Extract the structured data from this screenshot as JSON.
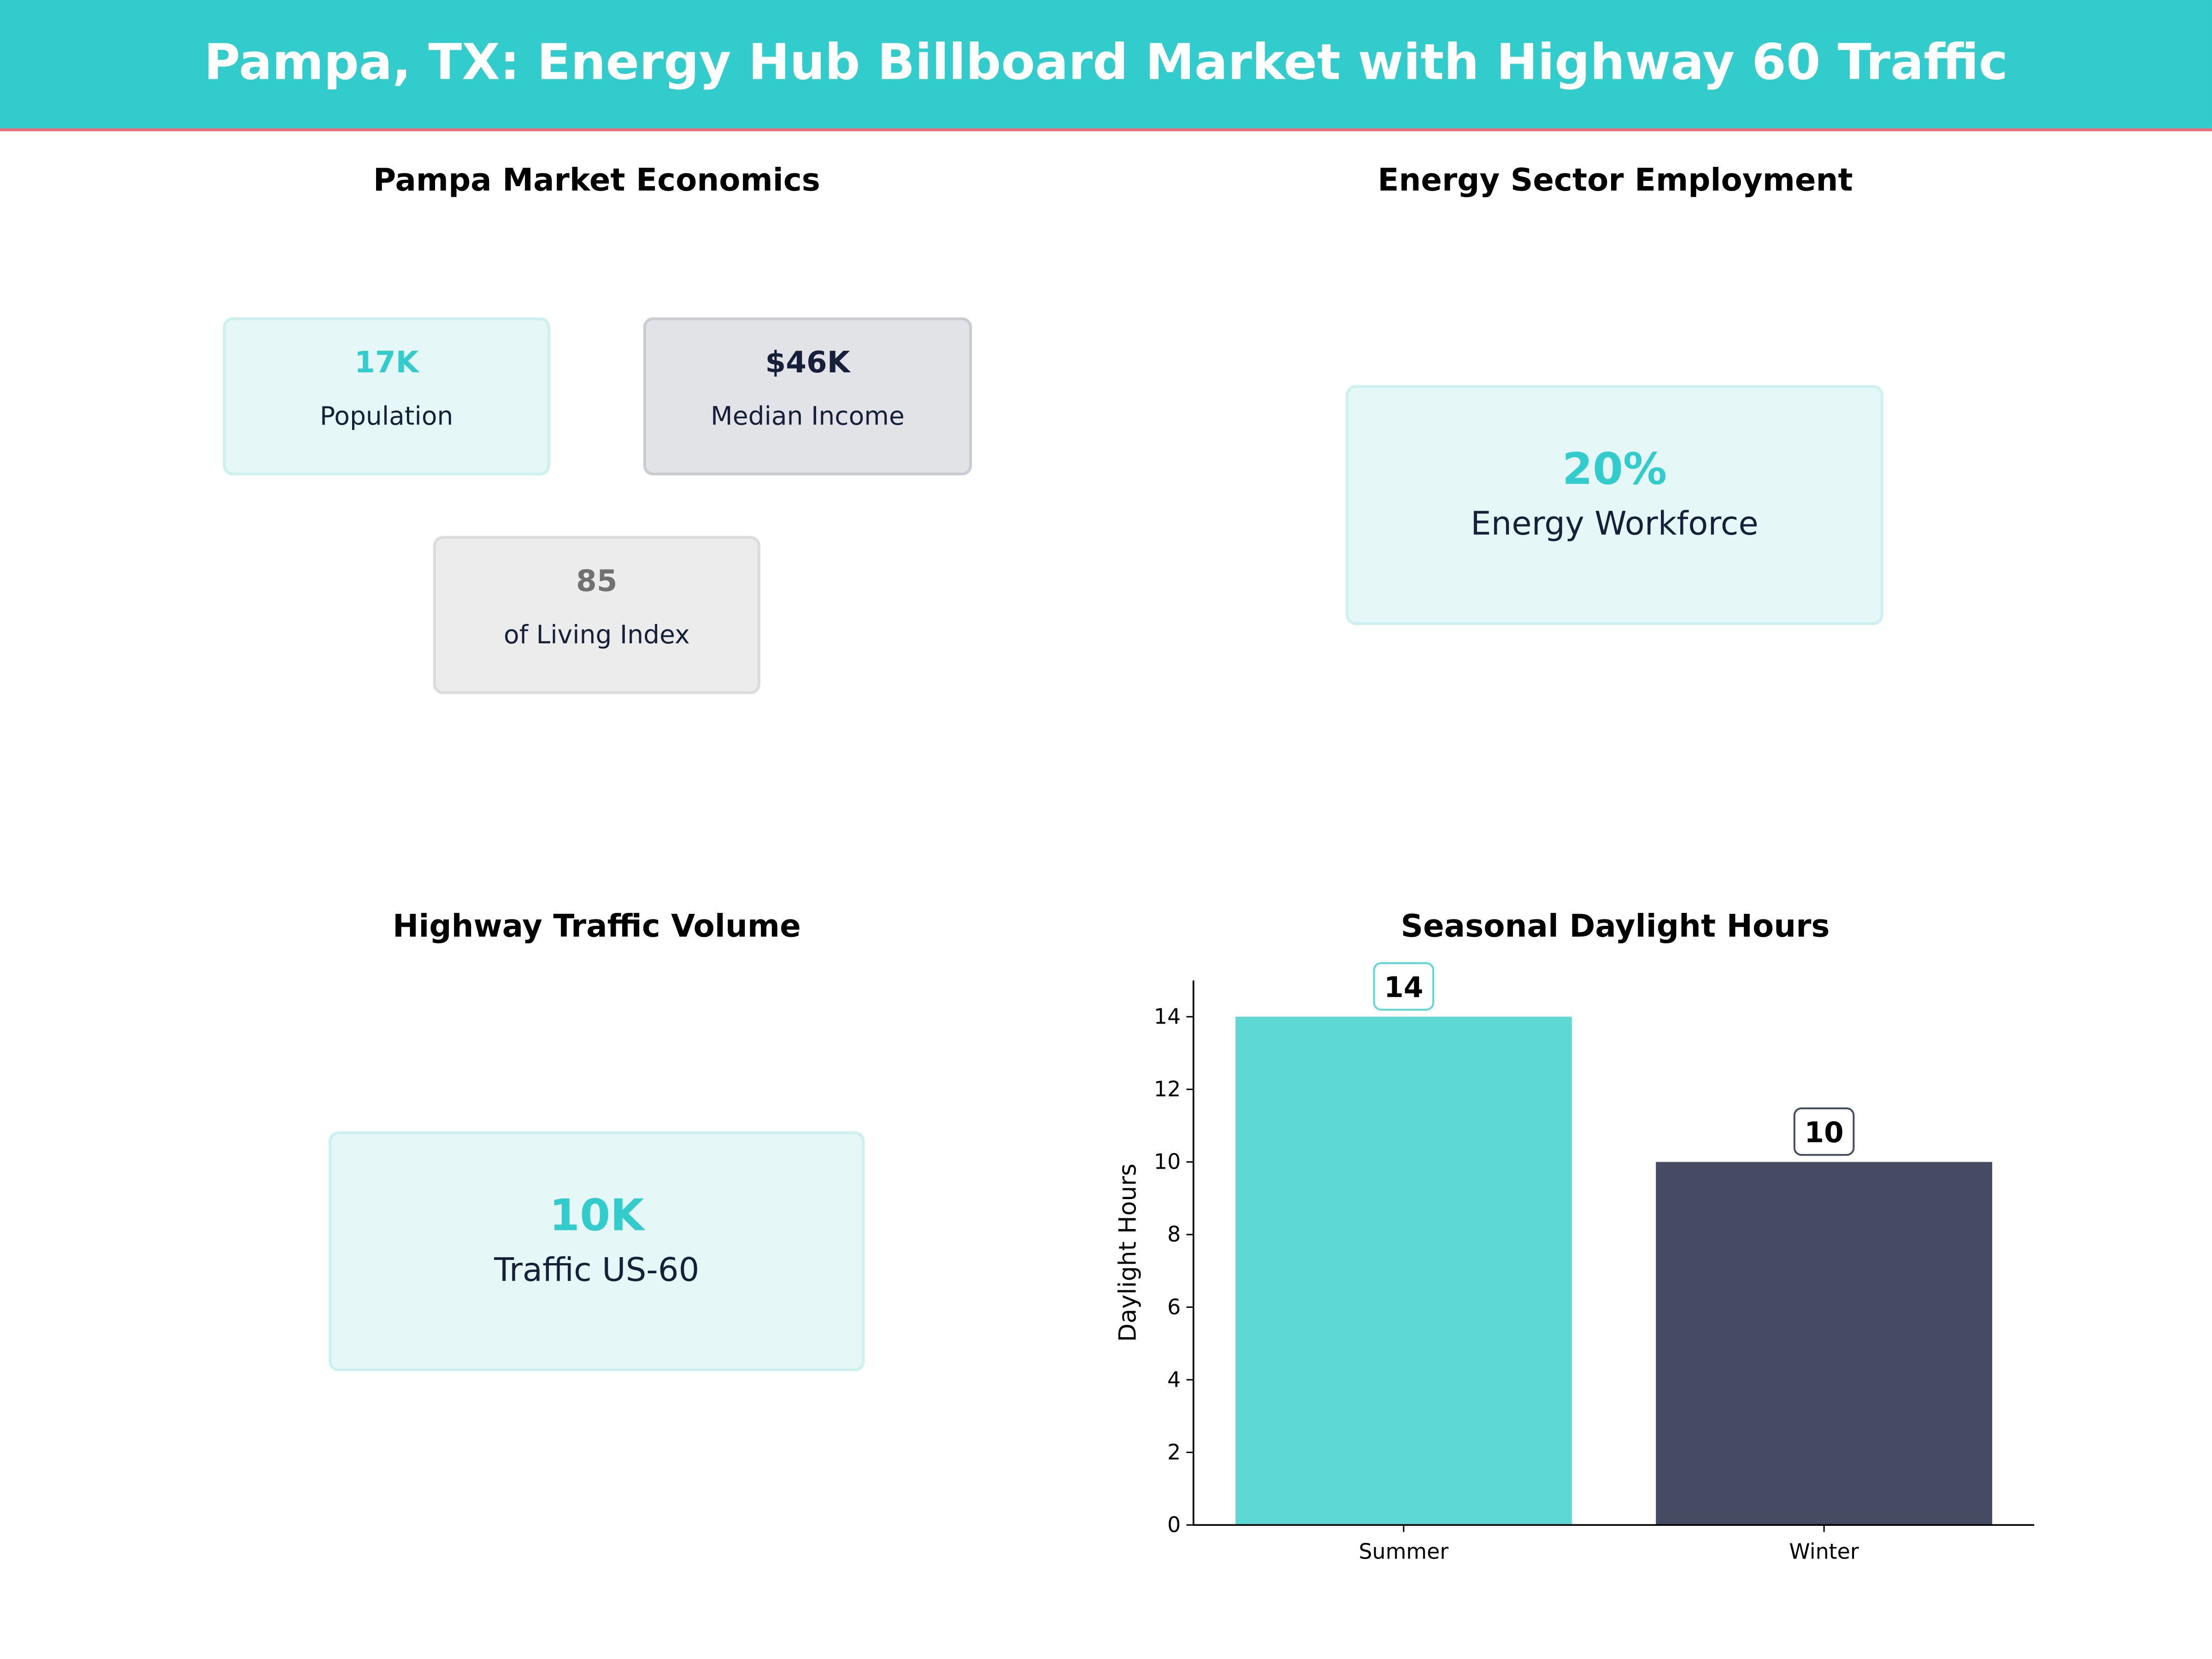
{
  "title": "Pampa, TX: Energy Hub Billboard Market with Highway 60 Traffic",
  "panels": {
    "economics": {
      "title": "Pampa Market Economics",
      "cards": [
        {
          "value": "17K",
          "label": "Population"
        },
        {
          "value": "$46K",
          "label": "Median Income"
        },
        {
          "value": "85",
          "label": "of Living Index"
        }
      ]
    },
    "energy": {
      "title": "Energy Sector Employment",
      "value": "20%",
      "label": "Energy Workforce"
    },
    "traffic": {
      "title": "Highway Traffic Volume",
      "value": "10K",
      "label": "Traffic US-60"
    }
  },
  "colors": {
    "accent": "#33cccc",
    "dark": "#454b62",
    "header_line": "#f06a78"
  },
  "chart_data": {
    "type": "bar",
    "title": "Seasonal Daylight Hours",
    "categories": [
      "Summer",
      "Winter"
    ],
    "values": [
      14,
      10
    ],
    "value_labels": [
      "14",
      "10"
    ],
    "colors": [
      "#5dd8d5",
      "#454b62"
    ],
    "xlabel": "",
    "ylabel": "Daylight Hours",
    "ylim": [
      0,
      15
    ],
    "yticks": [
      0,
      2,
      4,
      6,
      8,
      10,
      12,
      14
    ],
    "grid": false
  }
}
